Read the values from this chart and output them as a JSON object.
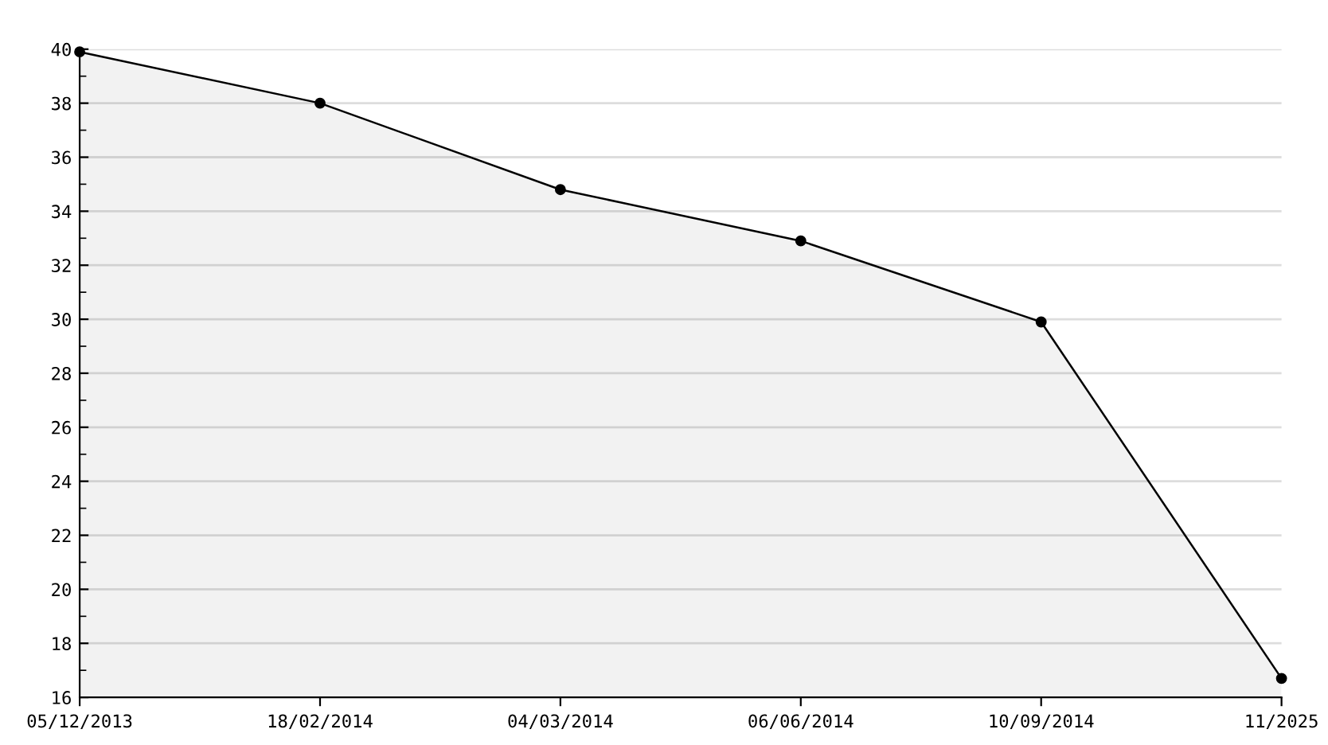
{
  "chart_data": {
    "type": "area",
    "categories": [
      "05/12/2013",
      "18/02/2014",
      "04/03/2014",
      "06/06/2014",
      "10/09/2014",
      "11/2025"
    ],
    "series": [
      {
        "color": "#000000",
        "values": [
          39.9,
          38.0,
          34.8,
          32.9,
          29.9,
          16.7
        ]
      }
    ],
    "ylim": [
      16,
      40
    ],
    "yticks": [
      16,
      18,
      20,
      22,
      24,
      26,
      28,
      30,
      32,
      34,
      36,
      38,
      40
    ],
    "grid": "y",
    "marker": "circle",
    "line_style": "solid",
    "legend": false
  }
}
